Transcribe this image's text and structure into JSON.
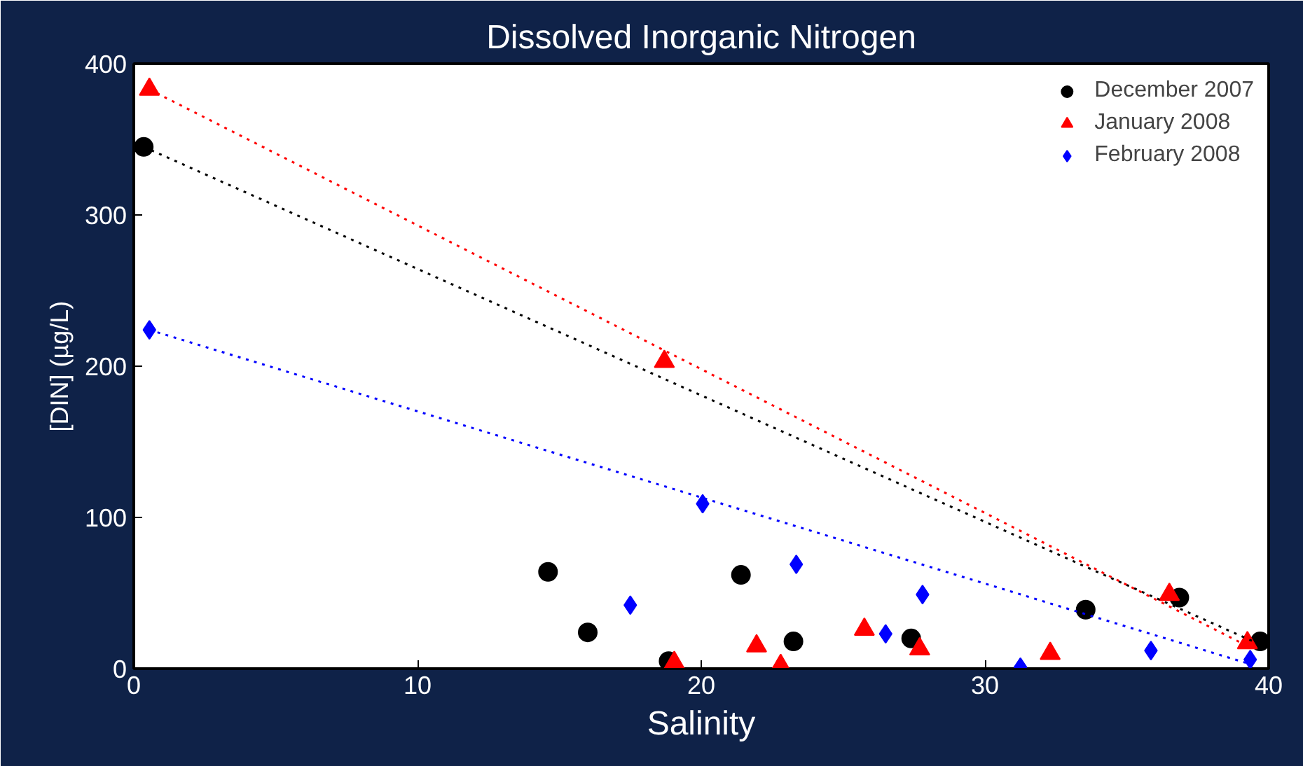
{
  "chart_data": {
    "type": "scatter",
    "title": "Dissolved Inorganic Nitrogen",
    "xlabel": "Salinity",
    "ylabel": "[DIN] (µg/L)",
    "xlim": [
      0,
      40
    ],
    "ylim": [
      0,
      400
    ],
    "xticks": [
      0,
      10,
      20,
      30,
      40
    ],
    "yticks": [
      0,
      100,
      200,
      300,
      400
    ],
    "grid": false,
    "legend": "top right",
    "series": [
      {
        "name": "December 2007",
        "color": "#000000",
        "marker": "circle",
        "x": [
          0.35,
          14.6,
          16.0,
          18.85,
          21.4,
          23.25,
          27.4,
          33.55,
          36.85,
          39.7
        ],
        "values": [
          345,
          64,
          24,
          5,
          62,
          18,
          20,
          39,
          47,
          18
        ]
      },
      {
        "name": "January 2008",
        "color": "#ff0000",
        "marker": "triangle",
        "x": [
          0.55,
          18.7,
          19.05,
          21.95,
          22.8,
          25.75,
          27.7,
          32.3,
          36.5,
          39.25
        ],
        "values": [
          383,
          203,
          4,
          15,
          2,
          26,
          13,
          10,
          49,
          17
        ]
      },
      {
        "name": "February 2008",
        "color": "#0000ff",
        "marker": "diamond",
        "x": [
          0.55,
          17.5,
          20.05,
          23.35,
          26.5,
          27.8,
          31.25,
          35.85,
          39.35
        ],
        "values": [
          224,
          42,
          109,
          69,
          23,
          49,
          1,
          12,
          6
        ]
      },
      {
        "type": "line",
        "color": "#000000",
        "marker": "none",
        "line_style": "dotted",
        "x": [
          0.35,
          39.7
        ],
        "values": [
          345,
          16
        ]
      },
      {
        "type": "line",
        "color": "#ff0000",
        "marker": "none",
        "line_style": "dotted",
        "x": [
          0.55,
          39.25
        ],
        "values": [
          383,
          15
        ]
      },
      {
        "type": "line",
        "color": "#0000ff",
        "marker": "none",
        "line_style": "dotted",
        "x": [
          0.55,
          39.35
        ],
        "values": [
          224,
          3
        ]
      }
    ]
  }
}
